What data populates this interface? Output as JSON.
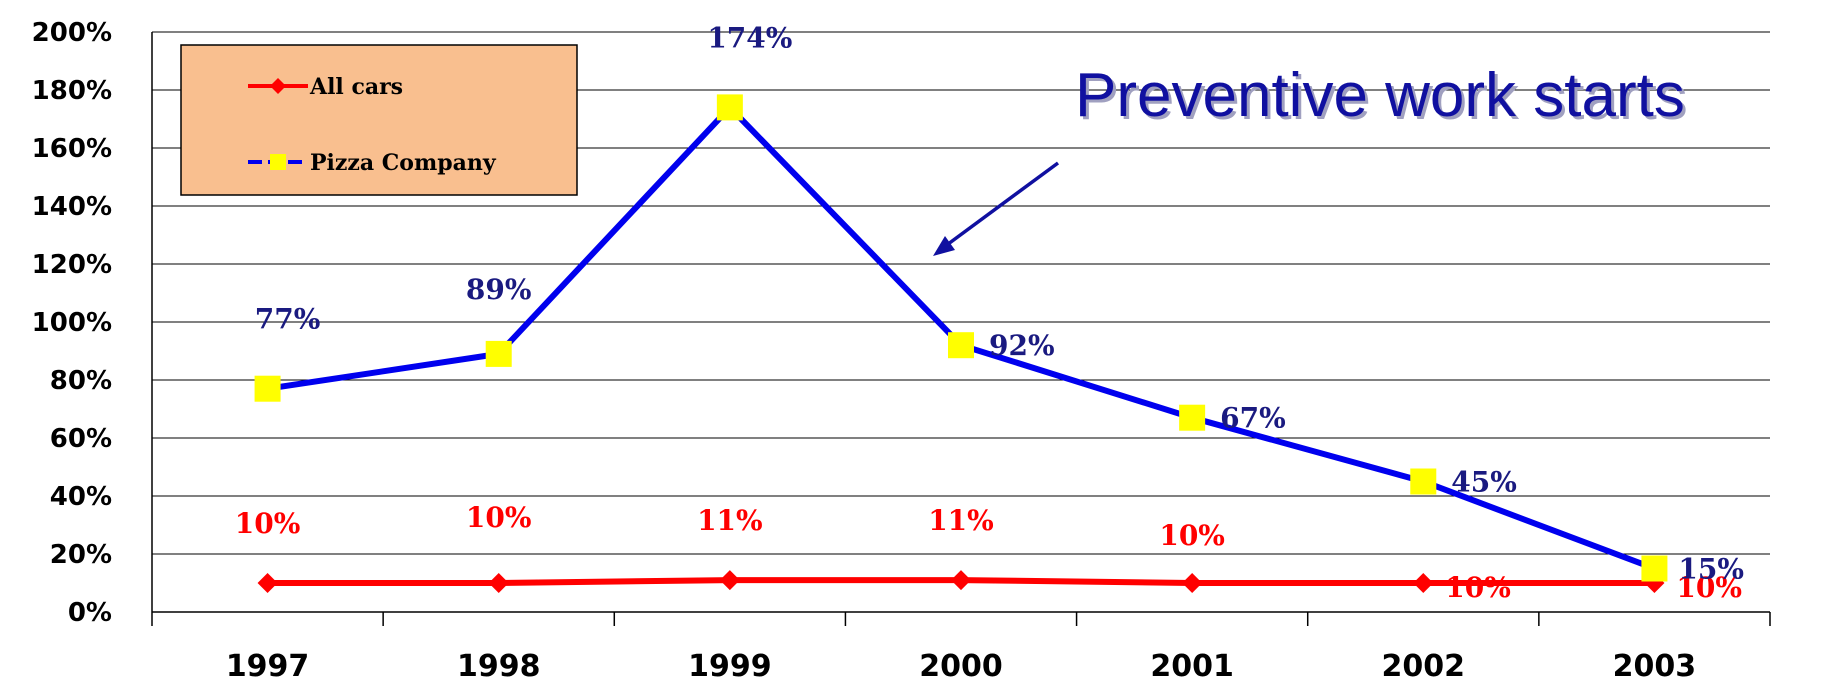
{
  "chart_data": {
    "type": "line",
    "categories": [
      "1997",
      "1998",
      "1999",
      "2000",
      "2001",
      "2002",
      "2003"
    ],
    "ylim": [
      0,
      200
    ],
    "yticks": [
      "0%",
      "20%",
      "40%",
      "60%",
      "80%",
      "100%",
      "120%",
      "140%",
      "160%",
      "180%",
      "200%"
    ],
    "ytick_values": [
      0,
      20,
      40,
      60,
      80,
      100,
      120,
      140,
      160,
      180,
      200
    ],
    "grid": true,
    "legend": "top-left",
    "series": [
      {
        "name": "All cars",
        "values": [
          10,
          10,
          11,
          11,
          10,
          10,
          10
        ],
        "labels": [
          "10%",
          "10%",
          "11%",
          "11%",
          "10%",
          "10%",
          "10%"
        ],
        "color": "#ff0000",
        "marker": "diamond",
        "marker_color": "#ff0000"
      },
      {
        "name": "Pizza Company",
        "values": [
          77,
          89,
          174,
          92,
          67,
          45,
          15
        ],
        "labels": [
          "77%",
          "89%",
          "174%",
          "92%",
          "67%",
          "45%",
          "15%"
        ],
        "color": "#0000ee",
        "marker": "square",
        "marker_color": "#ffff00",
        "label_color": "#1a1a80"
      }
    ],
    "annotation": {
      "text": "Preventive work starts",
      "color": "#1010a0",
      "arrow_target_category": "2000"
    },
    "legend_background": "#f9bf8f"
  }
}
